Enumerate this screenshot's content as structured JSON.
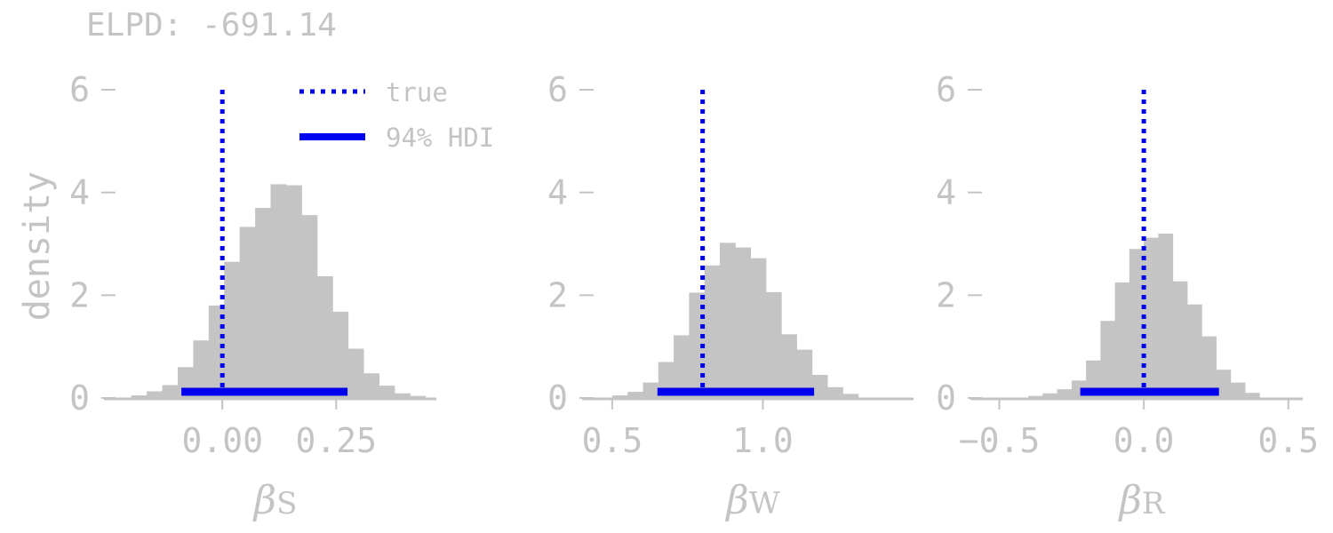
{
  "figure": {
    "header": "ELPD: -691.14",
    "ylabel": "density",
    "legend": {
      "true_label": "true",
      "hdi_label": "94% HDI"
    },
    "colors": {
      "hist": "#c4c4c4",
      "marker": "#0000ee",
      "text": "#c4c4c4",
      "axis": "#c4c4c4"
    }
  },
  "chart_data": [
    {
      "type": "bar",
      "param_symbol": "β",
      "param_sub": "S",
      "xlim": [
        -0.26,
        0.47
      ],
      "ylim": [
        0,
        6
      ],
      "xticks": [
        0.0,
        0.25
      ],
      "xtick_labels": [
        "0.00",
        "0.25"
      ],
      "yticks": [
        0,
        2,
        4,
        6
      ],
      "ytick_labels": [
        "0",
        "2",
        "4",
        "6"
      ],
      "bin_edges": [
        -0.2,
        -0.166,
        -0.132,
        -0.098,
        -0.064,
        -0.03,
        0.004,
        0.038,
        0.072,
        0.106,
        0.14,
        0.174,
        0.208,
        0.242,
        0.276,
        0.31,
        0.344,
        0.378,
        0.412,
        0.446
      ],
      "densities": [
        0.05,
        0.13,
        0.25,
        0.6,
        1.12,
        1.8,
        2.65,
        3.33,
        3.7,
        4.16,
        4.14,
        3.56,
        2.37,
        1.68,
        0.96,
        0.48,
        0.24,
        0.09,
        0.04
      ],
      "true_value": 0.0,
      "hdi": [
        -0.09,
        0.275
      ]
    },
    {
      "type": "bar",
      "param_symbol": "β",
      "param_sub": "W",
      "xlim": [
        0.4,
        1.5
      ],
      "ylim": [
        0,
        6
      ],
      "xticks": [
        0.5,
        1.0
      ],
      "xtick_labels": [
        "0.5",
        "1.0"
      ],
      "yticks": [
        0,
        2,
        4,
        6
      ],
      "ytick_labels": [
        "0",
        "2",
        "4",
        "6"
      ],
      "bin_edges": [
        0.5,
        0.551,
        0.602,
        0.653,
        0.704,
        0.755,
        0.806,
        0.857,
        0.908,
        0.959,
        1.01,
        1.061,
        1.112,
        1.163,
        1.214,
        1.265,
        1.316
      ],
      "densities": [
        0.05,
        0.12,
        0.3,
        0.7,
        1.22,
        2.05,
        2.58,
        3.02,
        2.93,
        2.72,
        2.06,
        1.24,
        0.94,
        0.45,
        0.21,
        0.08
      ],
      "true_value": 0.8,
      "hdi": [
        0.65,
        1.17
      ]
    },
    {
      "type": "bar",
      "param_symbol": "β",
      "param_sub": "R",
      "xlim": [
        -0.6,
        0.55
      ],
      "ylim": [
        0,
        6
      ],
      "xticks": [
        -0.5,
        0.0,
        0.5
      ],
      "xtick_labels": [
        "−0.5",
        "0.0",
        "0.5"
      ],
      "yticks": [
        0,
        2,
        4,
        6
      ],
      "ytick_labels": [
        "0",
        "2",
        "4",
        "6"
      ],
      "bin_edges": [
        -0.4,
        -0.35,
        -0.3,
        -0.25,
        -0.2,
        -0.15,
        -0.1,
        -0.05,
        0.0,
        0.05,
        0.1,
        0.15,
        0.2,
        0.25,
        0.3,
        0.35,
        0.4
      ],
      "densities": [
        0.04,
        0.09,
        0.17,
        0.34,
        0.73,
        1.5,
        2.25,
        2.9,
        3.12,
        3.2,
        2.27,
        1.82,
        1.2,
        0.55,
        0.3,
        0.1
      ],
      "true_value": 0.0,
      "hdi": [
        -0.22,
        0.26
      ]
    }
  ]
}
